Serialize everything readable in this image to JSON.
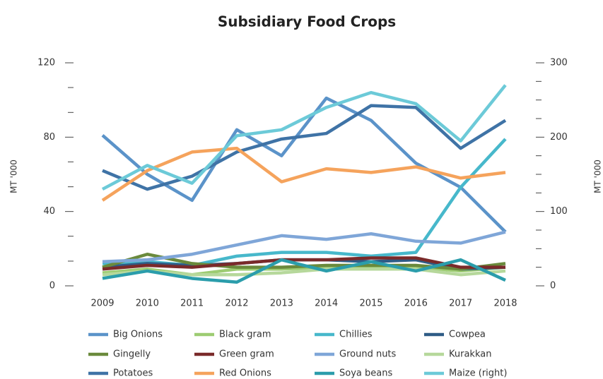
{
  "chart_data": {
    "type": "line",
    "title": "Subsidiary Food Crops",
    "y_label": "MT '000",
    "y2_label": "MT '000",
    "x": [
      2009,
      2010,
      2011,
      2012,
      2013,
      2014,
      2015,
      2016,
      2017,
      2018
    ],
    "xlim": [
      2009,
      2018
    ],
    "ylim": [
      0,
      120
    ],
    "yticks": [
      0,
      40,
      80,
      120
    ],
    "yminor": [
      13.3,
      26.7,
      53.3,
      66.7,
      93.3,
      106.7
    ],
    "y2lim": [
      0,
      300
    ],
    "y2ticks": [
      0,
      100,
      200,
      300
    ],
    "y2minor": [
      25,
      50,
      75,
      125,
      150,
      175,
      225,
      250,
      275
    ],
    "grid": false,
    "legend": "bottom",
    "series": [
      {
        "name": "Big Onions",
        "color": "#5b93c9",
        "values": [
          81,
          60,
          46,
          84,
          70,
          101,
          89,
          66,
          53,
          29
        ]
      },
      {
        "name": "Black gram",
        "color": "#9dcc72",
        "values": [
          7,
          9,
          6,
          9,
          9,
          10,
          10,
          10,
          8,
          10
        ]
      },
      {
        "name": "Chillies",
        "color": "#47b8cb",
        "values": [
          12,
          13,
          11,
          16,
          18,
          18,
          16,
          18,
          53,
          79
        ]
      },
      {
        "name": "Cowpea",
        "color": "#2f5c86",
        "values": [
          10,
          12,
          11,
          12,
          14,
          14,
          13,
          14,
          9,
          10
        ]
      },
      {
        "name": "Gingelly",
        "color": "#6a8a3c",
        "values": [
          10,
          17,
          12,
          10,
          10,
          11,
          11,
          11,
          9,
          12
        ]
      },
      {
        "name": "Green gram",
        "color": "#7a2a2a",
        "values": [
          9,
          11,
          10,
          12,
          14,
          14,
          15,
          15,
          10,
          10
        ]
      },
      {
        "name": "Ground nuts",
        "color": "#7fa6d8",
        "values": [
          13,
          14,
          17,
          22,
          27,
          25,
          28,
          24,
          23,
          29
        ]
      },
      {
        "name": "Kurakkan",
        "color": "#b6d89b",
        "values": [
          6,
          8,
          6,
          6,
          7,
          9,
          9,
          9,
          6,
          8
        ]
      },
      {
        "name": "Potatoes",
        "color": "#3f73a6",
        "values": [
          62,
          52,
          59,
          72,
          79,
          82,
          97,
          96,
          74,
          89
        ]
      },
      {
        "name": "Red Onions",
        "color": "#f5a35c",
        "values": [
          46,
          62,
          72,
          74,
          56,
          63,
          61,
          64,
          58,
          61
        ]
      },
      {
        "name": "Soya beans",
        "color": "#2b9dab",
        "values": [
          4,
          8,
          4,
          2,
          14,
          8,
          13,
          8,
          14,
          3
        ]
      },
      {
        "name": "Maize (right)",
        "color": "#6ccad8",
        "axis": "y2",
        "values": [
          130,
          162,
          138,
          202,
          210,
          240,
          260,
          245,
          195,
          270
        ]
      }
    ]
  }
}
